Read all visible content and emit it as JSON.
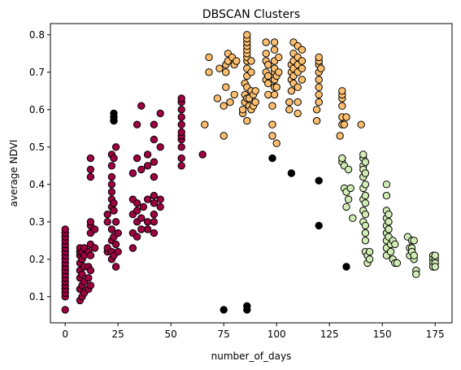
{
  "chart_data": {
    "type": "scatter",
    "title": "DBSCAN Clusters",
    "xlabel": "number_of_days",
    "ylabel": "average NDVI",
    "xlim": [
      -7,
      183
    ],
    "ylim": [
      0.03,
      0.83
    ],
    "xticks": [
      0,
      25,
      50,
      75,
      100,
      125,
      150,
      175
    ],
    "yticks": [
      0.1,
      0.2,
      0.3,
      0.4,
      0.5,
      0.6,
      0.7,
      0.8
    ],
    "grid": false,
    "legend": "none",
    "series": [
      {
        "color": "#9e0142",
        "points": [
          [
            0,
            0.065
          ],
          [
            0,
            0.1
          ],
          [
            0,
            0.11
          ],
          [
            0,
            0.12
          ],
          [
            0,
            0.13
          ],
          [
            0,
            0.14
          ],
          [
            0,
            0.15
          ],
          [
            0,
            0.16
          ],
          [
            0,
            0.17
          ],
          [
            0,
            0.18
          ],
          [
            0,
            0.19
          ],
          [
            0,
            0.2
          ],
          [
            0,
            0.21
          ],
          [
            0,
            0.22
          ],
          [
            0,
            0.23
          ],
          [
            0,
            0.24
          ],
          [
            0,
            0.25
          ],
          [
            0,
            0.26
          ],
          [
            0,
            0.27
          ],
          [
            0,
            0.28
          ],
          [
            7,
            0.09
          ],
          [
            7,
            0.12
          ],
          [
            7,
            0.15
          ],
          [
            7,
            0.17
          ],
          [
            7,
            0.19
          ],
          [
            7,
            0.21
          ],
          [
            7,
            0.22
          ],
          [
            7,
            0.23
          ],
          [
            8,
            0.1
          ],
          [
            8,
            0.13
          ],
          [
            8,
            0.16
          ],
          [
            8,
            0.2
          ],
          [
            8,
            0.22
          ],
          [
            9,
            0.11
          ],
          [
            9,
            0.14
          ],
          [
            9,
            0.18
          ],
          [
            9,
            0.21
          ],
          [
            9,
            0.23
          ],
          [
            11,
            0.12
          ],
          [
            11,
            0.15
          ],
          [
            11,
            0.18
          ],
          [
            11,
            0.22
          ],
          [
            12,
            0.13
          ],
          [
            12,
            0.17
          ],
          [
            12,
            0.21
          ],
          [
            12,
            0.24
          ],
          [
            12,
            0.27
          ],
          [
            12,
            0.29
          ],
          [
            12,
            0.3
          ],
          [
            12,
            0.42
          ],
          [
            12,
            0.44
          ],
          [
            12,
            0.47
          ],
          [
            14,
            0.23
          ],
          [
            14,
            0.28
          ],
          [
            20,
            0.22
          ],
          [
            20,
            0.23
          ],
          [
            20,
            0.3
          ],
          [
            20,
            0.32
          ],
          [
            22,
            0.2
          ],
          [
            22,
            0.22
          ],
          [
            22,
            0.25
          ],
          [
            22,
            0.28
          ],
          [
            22,
            0.34
          ],
          [
            22,
            0.36
          ],
          [
            22,
            0.38
          ],
          [
            22,
            0.4
          ],
          [
            22,
            0.42
          ],
          [
            22,
            0.45
          ],
          [
            22,
            0.48
          ],
          [
            23,
            0.21
          ],
          [
            23,
            0.26
          ],
          [
            23,
            0.33
          ],
          [
            23,
            0.35
          ],
          [
            23,
            0.47
          ],
          [
            24,
            0.18
          ],
          [
            24,
            0.24
          ],
          [
            24,
            0.3
          ],
          [
            24,
            0.5
          ],
          [
            25,
            0.22
          ],
          [
            25,
            0.27
          ],
          [
            32,
            0.23
          ],
          [
            32,
            0.27
          ],
          [
            32,
            0.32
          ],
          [
            32,
            0.36
          ],
          [
            32,
            0.43
          ],
          [
            34,
            0.26
          ],
          [
            34,
            0.3
          ],
          [
            34,
            0.33
          ],
          [
            34,
            0.35
          ],
          [
            34,
            0.47
          ],
          [
            34,
            0.56
          ],
          [
            36,
            0.28
          ],
          [
            36,
            0.31
          ],
          [
            36,
            0.44
          ],
          [
            36,
            0.61
          ],
          [
            37,
            0.34
          ],
          [
            39,
            0.28
          ],
          [
            39,
            0.3
          ],
          [
            39,
            0.36
          ],
          [
            39,
            0.45
          ],
          [
            39,
            0.48
          ],
          [
            42,
            0.27
          ],
          [
            42,
            0.3
          ],
          [
            42,
            0.32
          ],
          [
            42,
            0.35
          ],
          [
            42,
            0.37
          ],
          [
            42,
            0.42
          ],
          [
            42,
            0.46
          ],
          [
            42,
            0.52
          ],
          [
            42,
            0.56
          ],
          [
            45,
            0.34
          ],
          [
            45,
            0.36
          ],
          [
            45,
            0.5
          ],
          [
            45,
            0.59
          ],
          [
            55,
            0.45
          ],
          [
            55,
            0.47
          ],
          [
            55,
            0.5
          ],
          [
            55,
            0.52
          ],
          [
            55,
            0.53
          ],
          [
            55,
            0.54
          ],
          [
            55,
            0.56
          ],
          [
            55,
            0.58
          ],
          [
            55,
            0.6
          ],
          [
            55,
            0.62
          ],
          [
            55,
            0.63
          ],
          [
            65,
            0.48
          ]
        ]
      },
      {
        "color": "#fdbf6f",
        "points": [
          [
            66,
            0.56
          ],
          [
            68,
            0.7
          ],
          [
            68,
            0.74
          ],
          [
            72,
            0.63
          ],
          [
            73,
            0.71
          ],
          [
            75,
            0.53
          ],
          [
            75,
            0.61
          ],
          [
            76,
            0.66
          ],
          [
            76,
            0.7
          ],
          [
            76,
            0.72
          ],
          [
            77,
            0.73
          ],
          [
            77,
            0.75
          ],
          [
            78,
            0.62
          ],
          [
            79,
            0.74
          ],
          [
            80,
            0.64
          ],
          [
            80,
            0.72
          ],
          [
            81,
            0.73
          ],
          [
            84,
            0.59
          ],
          [
            84,
            0.6
          ],
          [
            85,
            0.62
          ],
          [
            85,
            0.64
          ],
          [
            85,
            0.67
          ],
          [
            86,
            0.57
          ],
          [
            86,
            0.63
          ],
          [
            86,
            0.66
          ],
          [
            86,
            0.69
          ],
          [
            86,
            0.71
          ],
          [
            86,
            0.73
          ],
          [
            86,
            0.74
          ],
          [
            86,
            0.75
          ],
          [
            86,
            0.76
          ],
          [
            86,
            0.77
          ],
          [
            86,
            0.78
          ],
          [
            86,
            0.79
          ],
          [
            86,
            0.8
          ],
          [
            87,
            0.61
          ],
          [
            87,
            0.63
          ],
          [
            88,
            0.6
          ],
          [
            88,
            0.65
          ],
          [
            88,
            0.7
          ],
          [
            88,
            0.73
          ],
          [
            89,
            0.61
          ],
          [
            89,
            0.64
          ],
          [
            90,
            0.62
          ],
          [
            90,
            0.65
          ],
          [
            95,
            0.68
          ],
          [
            95,
            0.7
          ],
          [
            95,
            0.73
          ],
          [
            95,
            0.75
          ],
          [
            95,
            0.78
          ],
          [
            96,
            0.64
          ],
          [
            96,
            0.67
          ],
          [
            96,
            0.69
          ],
          [
            96,
            0.72
          ],
          [
            98,
            0.53
          ],
          [
            98,
            0.56
          ],
          [
            98,
            0.61
          ],
          [
            99,
            0.64
          ],
          [
            99,
            0.66
          ],
          [
            99,
            0.68
          ],
          [
            99,
            0.7
          ],
          [
            99,
            0.71
          ],
          [
            99,
            0.73
          ],
          [
            99,
            0.76
          ],
          [
            99,
            0.78
          ],
          [
            100,
            0.51
          ],
          [
            100,
            0.66
          ],
          [
            100,
            0.69
          ],
          [
            101,
            0.7
          ],
          [
            101,
            0.74
          ],
          [
            106,
            0.6
          ],
          [
            106,
            0.62
          ],
          [
            107,
            0.65
          ],
          [
            107,
            0.68
          ],
          [
            107,
            0.7
          ],
          [
            107,
            0.72
          ],
          [
            108,
            0.67
          ],
          [
            108,
            0.69
          ],
          [
            108,
            0.71
          ],
          [
            108,
            0.73
          ],
          [
            108,
            0.75
          ],
          [
            108,
            0.78
          ],
          [
            110,
            0.59
          ],
          [
            110,
            0.62
          ],
          [
            110,
            0.66
          ],
          [
            110,
            0.7
          ],
          [
            110,
            0.72
          ],
          [
            110,
            0.74
          ],
          [
            110,
            0.77
          ],
          [
            112,
            0.68
          ],
          [
            112,
            0.71
          ],
          [
            112,
            0.73
          ],
          [
            112,
            0.76
          ],
          [
            119,
            0.57
          ],
          [
            119,
            0.6
          ],
          [
            120,
            0.62
          ],
          [
            120,
            0.64
          ],
          [
            120,
            0.66
          ],
          [
            120,
            0.68
          ],
          [
            120,
            0.7
          ],
          [
            120,
            0.72
          ],
          [
            120,
            0.73
          ],
          [
            120,
            0.74
          ],
          [
            121,
            0.71
          ],
          [
            130,
            0.53
          ],
          [
            131,
            0.56
          ],
          [
            131,
            0.58
          ],
          [
            131,
            0.61
          ],
          [
            131,
            0.63
          ],
          [
            131,
            0.64
          ],
          [
            131,
            0.65
          ],
          [
            132,
            0.56
          ],
          [
            133,
            0.58
          ],
          [
            140,
            0.56
          ]
        ]
      },
      {
        "color": "#d2ecb5",
        "points": [
          [
            131,
            0.46
          ],
          [
            131,
            0.47
          ],
          [
            132,
            0.45
          ],
          [
            132,
            0.39
          ],
          [
            133,
            0.38
          ],
          [
            133,
            0.34
          ],
          [
            134,
            0.44
          ],
          [
            134,
            0.36
          ],
          [
            135,
            0.39
          ],
          [
            136,
            0.31
          ],
          [
            141,
            0.45
          ],
          [
            141,
            0.47
          ],
          [
            141,
            0.48
          ],
          [
            141,
            0.44
          ],
          [
            141,
            0.42
          ],
          [
            141,
            0.39
          ],
          [
            141,
            0.36
          ],
          [
            141,
            0.33
          ],
          [
            141,
            0.3
          ],
          [
            142,
            0.46
          ],
          [
            142,
            0.43
          ],
          [
            142,
            0.4
          ],
          [
            142,
            0.37
          ],
          [
            142,
            0.35
          ],
          [
            142,
            0.32
          ],
          [
            142,
            0.29
          ],
          [
            142,
            0.27
          ],
          [
            142,
            0.25
          ],
          [
            142,
            0.22
          ],
          [
            143,
            0.21
          ],
          [
            143,
            0.19
          ],
          [
            144,
            0.22
          ],
          [
            144,
            0.2
          ],
          [
            152,
            0.4
          ],
          [
            152,
            0.37
          ],
          [
            152,
            0.33
          ],
          [
            152,
            0.31
          ],
          [
            152,
            0.29
          ],
          [
            152,
            0.27
          ],
          [
            152,
            0.25
          ],
          [
            152,
            0.23
          ],
          [
            152,
            0.21
          ],
          [
            153,
            0.32
          ],
          [
            153,
            0.3
          ],
          [
            153,
            0.28
          ],
          [
            153,
            0.26
          ],
          [
            154,
            0.24
          ],
          [
            154,
            0.22
          ],
          [
            155,
            0.2
          ],
          [
            155,
            0.25
          ],
          [
            156,
            0.19
          ],
          [
            156,
            0.24
          ],
          [
            157,
            0.19
          ],
          [
            162,
            0.26
          ],
          [
            163,
            0.23
          ],
          [
            163,
            0.21
          ],
          [
            164,
            0.25
          ],
          [
            164,
            0.23
          ],
          [
            164,
            0.22
          ],
          [
            165,
            0.2
          ],
          [
            165,
            0.21
          ],
          [
            165,
            0.25
          ],
          [
            166,
            0.17
          ],
          [
            166,
            0.16
          ],
          [
            174,
            0.21
          ],
          [
            174,
            0.2
          ],
          [
            174,
            0.19
          ],
          [
            174,
            0.18
          ],
          [
            175,
            0.2
          ],
          [
            175,
            0.19
          ],
          [
            175,
            0.18
          ],
          [
            175,
            0.21
          ]
        ]
      },
      {
        "color": "#000000",
        "points": [
          [
            23,
            0.57
          ],
          [
            23,
            0.58
          ],
          [
            23,
            0.59
          ],
          [
            75,
            0.065
          ],
          [
            86,
            0.065
          ],
          [
            86,
            0.075
          ],
          [
            98,
            0.47
          ],
          [
            107,
            0.43
          ],
          [
            120,
            0.41
          ],
          [
            120,
            0.29
          ],
          [
            133,
            0.18
          ]
        ]
      }
    ]
  }
}
